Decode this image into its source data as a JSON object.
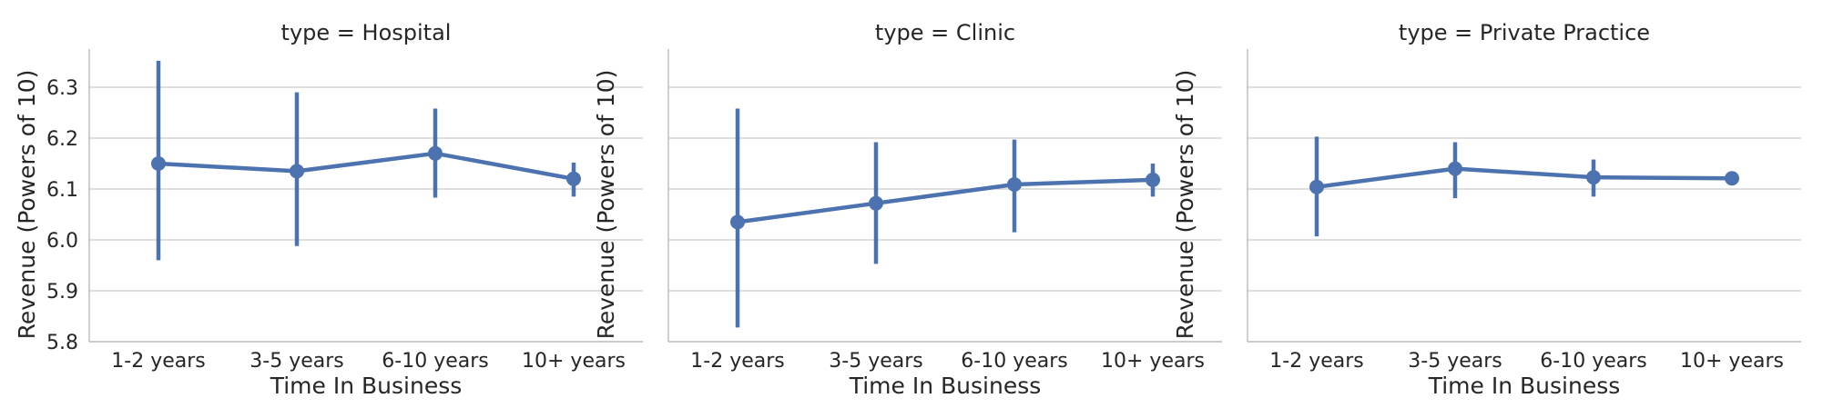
{
  "chart_data": [
    {
      "type": "line",
      "title": "type = Hospital",
      "xlabel": "Time In Business",
      "ylabel": "Revenue (Powers of 10)",
      "categories": [
        "1-2 years",
        "3-5 years",
        "6-10 years",
        "10+ years"
      ],
      "values": [
        6.15,
        6.135,
        6.17,
        6.12
      ],
      "ci_low": [
        5.96,
        5.988,
        6.083,
        6.085
      ],
      "ci_high": [
        6.352,
        6.29,
        6.258,
        6.152
      ],
      "ylim": [
        5.8,
        6.35
      ],
      "yticks": [
        "5.8",
        "5.9",
        "6.0",
        "6.1",
        "6.2",
        "6.3"
      ],
      "grid": "horizontal",
      "color": "#4c72b0"
    },
    {
      "type": "line",
      "title": "type = Clinic",
      "xlabel": "Time In Business",
      "ylabel": "Revenue (Powers of 10)",
      "categories": [
        "1-2 years",
        "3-5 years",
        "6-10 years",
        "10+ years"
      ],
      "values": [
        6.035,
        6.072,
        6.109,
        6.118
      ],
      "ci_low": [
        5.828,
        5.953,
        6.015,
        6.085
      ],
      "ci_high": [
        6.258,
        6.192,
        6.197,
        6.15
      ],
      "ylim": [
        5.8,
        6.35
      ],
      "grid": "horizontal",
      "color": "#4c72b0"
    },
    {
      "type": "line",
      "title": "type = Private Practice",
      "xlabel": "Time In Business",
      "ylabel": "Revenue (Powers of 10)",
      "categories": [
        "1-2 years",
        "3-5 years",
        "6-10 years",
        "10+ years"
      ],
      "values": [
        6.104,
        6.14,
        6.123,
        6.121
      ],
      "ci_low": [
        6.007,
        6.082,
        6.085,
        6.113
      ],
      "ci_high": [
        6.203,
        6.192,
        6.158,
        6.13
      ],
      "ylim": [
        5.8,
        6.35
      ],
      "grid": "horizontal",
      "color": "#4c72b0"
    }
  ]
}
